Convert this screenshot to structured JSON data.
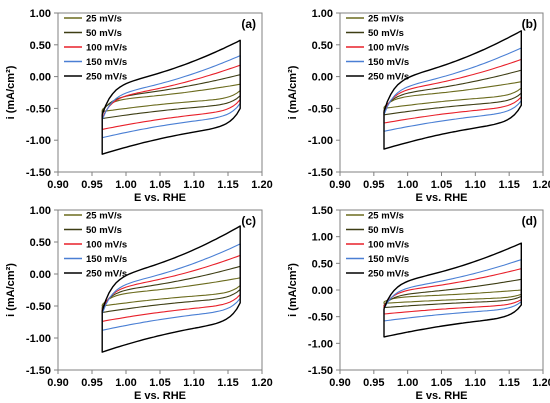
{
  "chart_data": [
    {
      "panel": "(a)",
      "type": "line",
      "xlabel": "E vs. RHE",
      "ylabel": "i (mA/cm²)",
      "xlim": [
        0.9,
        1.2
      ],
      "ylim": [
        -1.5,
        1.0
      ],
      "xticks": [
        0.9,
        0.95,
        1.0,
        1.05,
        1.1,
        1.15,
        1.2
      ],
      "yticks": [
        1.0,
        0.5,
        0.0,
        -0.5,
        -1.0,
        -1.5
      ],
      "xtick_labels": [
        "0.90",
        "0.95",
        "1.00",
        "1.05",
        "1.10",
        "1.15",
        "1.20"
      ],
      "ytick_labels": [
        "1.00",
        "0.50",
        "0.00",
        "-0.50",
        "-1.00",
        "-1.50"
      ],
      "legend_position": "upper-left",
      "series": [
        {
          "name": "25 mV/s",
          "color": "#6b6b1e",
          "anodic_start": -0.52,
          "anodic_end": -0.12,
          "cathodic_start": -0.22,
          "cathodic_end": -0.55
        },
        {
          "name": "50 mV/s",
          "color": "#3d3d14",
          "anodic_start": -0.55,
          "anodic_end": 0.03,
          "cathodic_start": -0.3,
          "cathodic_end": -0.66
        },
        {
          "name": "100 mV/s",
          "color": "#e8202a",
          "anodic_start": -0.65,
          "anodic_end": 0.18,
          "cathodic_start": -0.36,
          "cathodic_end": -0.83
        },
        {
          "name": "150 mV/s",
          "color": "#4a7fd4",
          "anodic_start": -0.68,
          "anodic_end": 0.33,
          "cathodic_start": -0.42,
          "cathodic_end": -0.96
        },
        {
          "name": "250 mV/s",
          "color": "#000000",
          "anodic_start": -0.6,
          "anodic_end": 0.57,
          "cathodic_start": -0.5,
          "cathodic_end": -1.22
        }
      ]
    },
    {
      "panel": "(b)",
      "type": "line",
      "xlabel": "E vs. RHE",
      "ylabel": "i (mA/cm²)",
      "xlim": [
        0.9,
        1.2
      ],
      "ylim": [
        -1.5,
        1.0
      ],
      "xticks": [
        0.9,
        0.95,
        1.0,
        1.05,
        1.1,
        1.15,
        1.2
      ],
      "yticks": [
        1.0,
        0.5,
        0.0,
        -0.5,
        -1.0,
        -1.5
      ],
      "xtick_labels": [
        "0.90",
        "0.95",
        "1.00",
        "1.05",
        "1.10",
        "1.15",
        "1.20"
      ],
      "ytick_labels": [
        "1.00",
        "0.50",
        "0.00",
        "-0.50",
        "-1.00",
        "-1.50"
      ],
      "legend_position": "upper-left",
      "series": [
        {
          "name": "25 mV/s",
          "color": "#6b6b1e",
          "anodic_start": -0.48,
          "anodic_end": -0.08,
          "cathodic_start": -0.18,
          "cathodic_end": -0.5
        },
        {
          "name": "50 mV/s",
          "color": "#3d3d14",
          "anodic_start": -0.52,
          "anodic_end": 0.1,
          "cathodic_start": -0.26,
          "cathodic_end": -0.6
        },
        {
          "name": "100 mV/s",
          "color": "#e8202a",
          "anodic_start": -0.55,
          "anodic_end": 0.27,
          "cathodic_start": -0.32,
          "cathodic_end": -0.73
        },
        {
          "name": "150 mV/s",
          "color": "#4a7fd4",
          "anodic_start": -0.6,
          "anodic_end": 0.45,
          "cathodic_start": -0.38,
          "cathodic_end": -0.86
        },
        {
          "name": "250 mV/s",
          "color": "#000000",
          "anodic_start": -0.55,
          "anodic_end": 0.72,
          "cathodic_start": -0.45,
          "cathodic_end": -1.14
        }
      ]
    },
    {
      "panel": "(c)",
      "type": "line",
      "xlabel": "E vs. RHE",
      "ylabel": "i (mA/cm²)",
      "xlim": [
        0.9,
        1.2
      ],
      "ylim": [
        -1.5,
        1.0
      ],
      "xticks": [
        0.9,
        0.95,
        1.0,
        1.05,
        1.1,
        1.15,
        1.2
      ],
      "yticks": [
        1.0,
        0.5,
        0.0,
        -0.5,
        -1.0,
        -1.5
      ],
      "xtick_labels": [
        "0.90",
        "0.95",
        "1.00",
        "1.05",
        "1.10",
        "1.15",
        "1.20"
      ],
      "ytick_labels": [
        "1.00",
        "0.50",
        "0.00",
        "-0.50",
        "-1.00",
        "-1.50"
      ],
      "legend_position": "upper-left",
      "series": [
        {
          "name": "25 mV/s",
          "color": "#6b6b1e",
          "anodic_start": -0.48,
          "anodic_end": -0.06,
          "cathodic_start": -0.18,
          "cathodic_end": -0.5
        },
        {
          "name": "50 mV/s",
          "color": "#3d3d14",
          "anodic_start": -0.52,
          "anodic_end": 0.12,
          "cathodic_start": -0.24,
          "cathodic_end": -0.6
        },
        {
          "name": "100 mV/s",
          "color": "#e8202a",
          "anodic_start": -0.56,
          "anodic_end": 0.29,
          "cathodic_start": -0.32,
          "cathodic_end": -0.74
        },
        {
          "name": "150 mV/s",
          "color": "#4a7fd4",
          "anodic_start": -0.62,
          "anodic_end": 0.47,
          "cathodic_start": -0.38,
          "cathodic_end": -0.88
        },
        {
          "name": "250 mV/s",
          "color": "#000000",
          "anodic_start": -0.58,
          "anodic_end": 0.75,
          "cathodic_start": -0.45,
          "cathodic_end": -1.22
        }
      ]
    },
    {
      "panel": "(d)",
      "type": "line",
      "xlabel": "E vs. RHE",
      "ylabel": "i (mA/cm²)",
      "xlim": [
        0.9,
        1.2
      ],
      "ylim": [
        -1.5,
        1.5
      ],
      "xticks": [
        0.9,
        0.95,
        1.0,
        1.05,
        1.1,
        1.15,
        1.2
      ],
      "yticks": [
        1.5,
        1.0,
        0.5,
        0.0,
        -0.5,
        -1.0,
        -1.5
      ],
      "xtick_labels": [
        "0.90",
        "0.95",
        "1.00",
        "1.05",
        "1.10",
        "1.15",
        "1.20"
      ],
      "ytick_labels": [
        "1.50",
        "1.00",
        "0.50",
        "0.00",
        "-0.50",
        "-1.00",
        "-1.50"
      ],
      "legend_position": "upper-left",
      "series": [
        {
          "name": "25 mV/s",
          "color": "#6b6b1e",
          "anodic_start": -0.22,
          "anodic_end": 0.0,
          "cathodic_start": -0.08,
          "cathodic_end": -0.25
        },
        {
          "name": "50 mV/s",
          "color": "#3d3d14",
          "anodic_start": -0.28,
          "anodic_end": 0.2,
          "cathodic_start": -0.12,
          "cathodic_end": -0.33
        },
        {
          "name": "100 mV/s",
          "color": "#e8202a",
          "anodic_start": -0.3,
          "anodic_end": 0.4,
          "cathodic_start": -0.18,
          "cathodic_end": -0.45
        },
        {
          "name": "150 mV/s",
          "color": "#4a7fd4",
          "anodic_start": -0.35,
          "anodic_end": 0.57,
          "cathodic_start": -0.22,
          "cathodic_end": -0.58
        },
        {
          "name": "250 mV/s",
          "color": "#000000",
          "anodic_start": -0.35,
          "anodic_end": 0.88,
          "cathodic_start": -0.28,
          "cathodic_end": -0.88
        }
      ]
    }
  ]
}
